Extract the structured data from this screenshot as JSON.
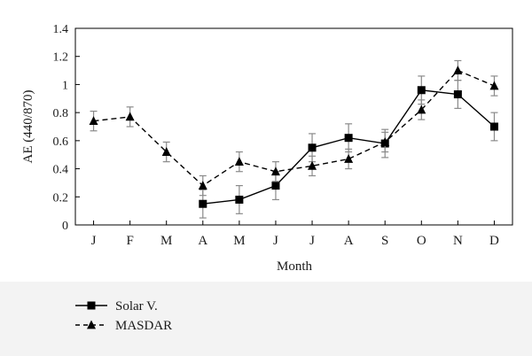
{
  "chart_data": {
    "type": "line",
    "title": "",
    "xlabel": "Month",
    "ylabel": "AE (440/870)",
    "categories": [
      "J",
      "F",
      "M",
      "A",
      "M",
      "J",
      "J",
      "A",
      "S",
      "O",
      "N",
      "D"
    ],
    "ylim": [
      0,
      1.4
    ],
    "yticks": [
      "0",
      "0.2",
      "0.4",
      "0.6",
      "0.8",
      "1",
      "1.2",
      "1.4"
    ],
    "grid": false,
    "legend_position": "bottom-left",
    "series": [
      {
        "name": "Solar V.",
        "style": "solid",
        "marker": "square",
        "color": "#000000",
        "values": [
          null,
          null,
          null,
          0.15,
          0.18,
          0.28,
          0.55,
          0.62,
          0.58,
          0.96,
          0.93,
          0.7
        ],
        "errors": [
          null,
          null,
          null,
          0.1,
          0.1,
          0.1,
          0.1,
          0.1,
          0.1,
          0.1,
          0.1,
          0.1
        ]
      },
      {
        "name": "MASDAR",
        "style": "dashed",
        "marker": "triangle",
        "color": "#000000",
        "values": [
          0.74,
          0.77,
          0.52,
          0.28,
          0.45,
          0.38,
          0.42,
          0.47,
          0.59,
          0.82,
          1.1,
          0.99
        ],
        "errors": [
          0.07,
          0.07,
          0.07,
          0.07,
          0.07,
          0.07,
          0.07,
          0.07,
          0.07,
          0.07,
          0.07,
          0.07
        ]
      }
    ]
  }
}
